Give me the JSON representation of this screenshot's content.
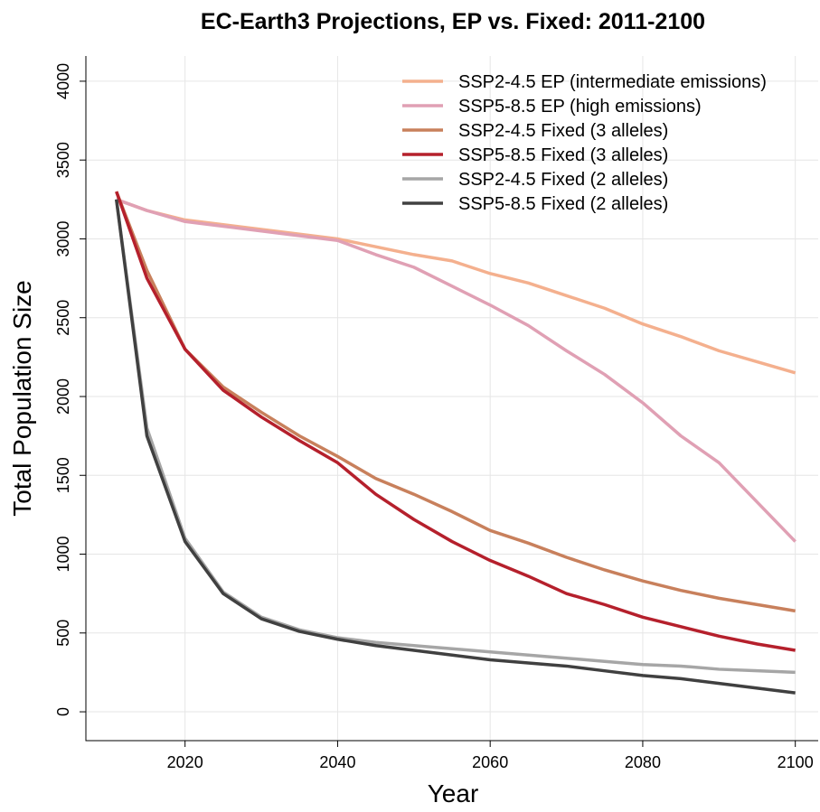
{
  "chart_data": {
    "type": "line",
    "title": "EC-Earth3 Projections, EP vs. Fixed: 2011-2100",
    "x_label": "Year",
    "y_label": "Total Population Size",
    "x": [
      2011,
      2015,
      2020,
      2025,
      2030,
      2035,
      2040,
      2045,
      2050,
      2055,
      2060,
      2065,
      2070,
      2075,
      2080,
      2085,
      2090,
      2095,
      2100
    ],
    "series": [
      {
        "name": "SSP2-4.5 EP (intermediate emissions)",
        "color": "#f4b08e",
        "values": [
          3250,
          3180,
          3120,
          3090,
          3060,
          3030,
          3000,
          2950,
          2900,
          2860,
          2780,
          2720,
          2640,
          2560,
          2460,
          2380,
          2290,
          2220,
          2150
        ]
      },
      {
        "name": "SSP5-8.5 EP (high emissions)",
        "color": "#e0a0b4",
        "values": [
          3250,
          3180,
          3110,
          3080,
          3050,
          3020,
          2990,
          2900,
          2820,
          2700,
          2580,
          2450,
          2290,
          2140,
          1960,
          1750,
          1580,
          1330,
          1080
        ]
      },
      {
        "name": "SSP2-4.5 Fixed (3 alleles)",
        "color": "#c8805c",
        "values": [
          3300,
          2800,
          2300,
          2060,
          1900,
          1750,
          1620,
          1480,
          1380,
          1270,
          1150,
          1070,
          980,
          900,
          830,
          770,
          720,
          680,
          640
        ]
      },
      {
        "name": "SSP5-8.5 Fixed (3 alleles)",
        "color": "#b5202c",
        "values": [
          3300,
          2750,
          2300,
          2040,
          1870,
          1720,
          1580,
          1380,
          1220,
          1080,
          960,
          860,
          750,
          680,
          600,
          540,
          480,
          430,
          390
        ]
      },
      {
        "name": "SSP2-4.5 Fixed (2 alleles)",
        "color": "#a6a6a6",
        "values": [
          3250,
          1800,
          1100,
          760,
          600,
          520,
          470,
          440,
          420,
          400,
          380,
          360,
          340,
          320,
          300,
          290,
          270,
          260,
          250
        ]
      },
      {
        "name": "SSP5-8.5 Fixed (2 alleles)",
        "color": "#404040",
        "values": [
          3250,
          1750,
          1080,
          750,
          590,
          510,
          460,
          420,
          390,
          360,
          330,
          310,
          290,
          260,
          230,
          210,
          180,
          150,
          120
        ]
      }
    ],
    "xlim": [
      2007,
      2103
    ],
    "xticks": [
      2020,
      2040,
      2060,
      2080,
      2100
    ],
    "ylim": [
      -183,
      4160
    ],
    "yticks": [
      0,
      500,
      1000,
      1500,
      2000,
      2500,
      3000,
      3500,
      4000
    ],
    "grid": true,
    "legend": "top-right"
  }
}
